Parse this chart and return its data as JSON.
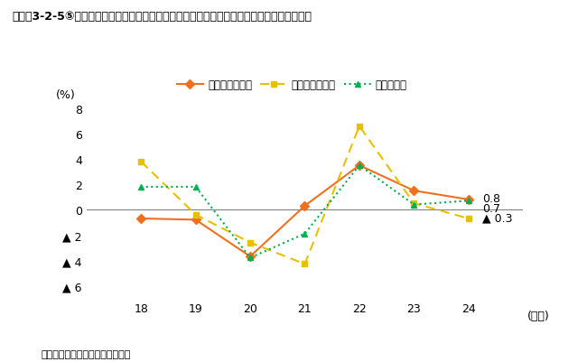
{
  "title": "コラム3-2-5⑤図　全国、兵庫県、豊岡市における実質域内総生産額（対前年変化率）の推移",
  "years": [
    18,
    19,
    20,
    21,
    22,
    23,
    24
  ],
  "toyooka": [
    -0.7,
    -0.8,
    -3.7,
    0.3,
    3.5,
    1.5,
    0.8
  ],
  "hyogo": [
    3.8,
    -0.4,
    -2.6,
    -4.3,
    6.6,
    0.5,
    -0.7
  ],
  "koku": [
    1.8,
    1.8,
    -3.8,
    -1.9,
    3.5,
    0.4,
    0.7
  ],
  "toyooka_color": "#f07020",
  "hyogo_color": "#e8c000",
  "koku_color": "#00b050",
  "ylabel": "(%)",
  "xlabel": "(年度)",
  "ylim_min": -7,
  "ylim_max": 8.5,
  "yticks": [
    -6,
    -4,
    -2,
    0,
    2,
    4,
    6,
    8
  ],
  "ytick_labels": [
    "▲ 6",
    "▲ 4",
    "▲ 2",
    "0",
    "2",
    "4",
    "6",
    "8"
  ],
  "legend_toyooka": "豊岡市（実質）",
  "legend_hyogo": "兵庫県（実質）",
  "legend_koku": "国（実質）",
  "source_text": "資料：豊岡市提供資料等より作成"
}
